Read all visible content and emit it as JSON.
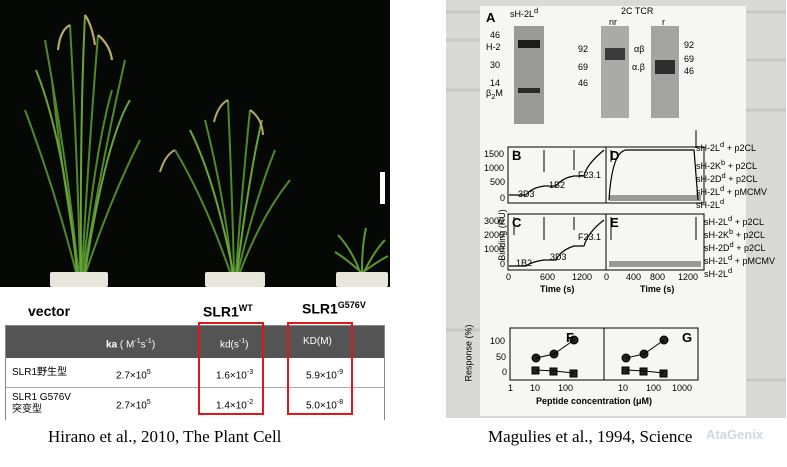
{
  "left": {
    "genotypes": {
      "vector": "vector",
      "wt_base": "SLR1",
      "wt_sup": "WT",
      "mut_base": "SLR1",
      "mut_sup": "G576V"
    },
    "table": {
      "headers": {
        "ka_base": "ka",
        "ka_unit_a": "( M",
        "ka_unit_b": "-1",
        "ka_unit_c": "s",
        "ka_unit_d": "-1",
        "ka_unit_e": ")",
        "kd_base": "kd(s",
        "kd_sup": "-1",
        "kd_end": ")",
        "KD": "KD(M)"
      },
      "rows": [
        {
          "name": "SLR1野生型",
          "name2": "",
          "ka_base": "2.7×10",
          "ka_exp": "5",
          "kd_base": "1.6×10",
          "kd_exp": "-3",
          "KD_base": "5.9×10",
          "KD_exp": "-9"
        },
        {
          "name": "SLR1 G576V",
          "name2": "突变型",
          "ka_base": "2.7×10",
          "ka_exp": "5",
          "kd_base": "1.4×10",
          "kd_exp": "-2",
          "KD_base": "5.0×10",
          "KD_exp": "-8"
        }
      ]
    },
    "citation": "Hirano et al., 2010, The Plant Cell"
  },
  "right": {
    "A": {
      "label": "A",
      "lane_titles": {
        "sh2": "sH-2L",
        "sh2_sup": "d",
        "tcr": "2C TCR",
        "nr": "nr",
        "r": "r"
      },
      "markers_left": [
        "46",
        "30",
        "14"
      ],
      "markers_mid": [
        "92",
        "69",
        "46"
      ],
      "markers_right": [
        "92",
        "69",
        "46"
      ],
      "bands": {
        "h2": "H-2",
        "b2m": "β",
        "b2m_sub": "2",
        "b2m_end": "M",
        "ab": "αβ",
        "a_b": "α.β"
      }
    },
    "binding": {
      "ylabel": "Binding (RU)",
      "xlabel": "Time (s)",
      "B": {
        "label": "B",
        "yticks": [
          "1500",
          "1000",
          "500",
          "0"
        ],
        "steps": [
          "3D3",
          "1B2",
          "F23.1"
        ]
      },
      "C": {
        "label": "C",
        "yticks": [
          "3000",
          "2000",
          "1000",
          "0"
        ],
        "steps": [
          "1B2",
          "3D3",
          "F23.1"
        ],
        "xticks": [
          "0",
          "600",
          "1200"
        ]
      },
      "D": {
        "label": "D"
      },
      "E": {
        "label": "E",
        "xticks": [
          "0",
          "400",
          "800",
          "1200"
        ]
      },
      "legendD": [
        "sH-2L",
        "sH-2K",
        "sH-2D",
        "sH-2L",
        "sH-2L"
      ],
      "legendD_sup": [
        "d",
        "b",
        "d",
        "d",
        "d"
      ],
      "legendD_tail": [
        " + p2CL",
        " + p2CL",
        " + p2CL",
        " + pMCMV",
        ""
      ],
      "legendE": [
        "sH-2L",
        "sH-2K",
        "sH-2D",
        "sH-2L",
        "sH-2L"
      ],
      "legendE_sup": [
        "d",
        "b",
        "d",
        "d",
        "d"
      ],
      "legendE_tail": [
        " + p2CL",
        " + p2CL",
        " + p2CL",
        " + pMCMV",
        ""
      ]
    },
    "response": {
      "ylabel": "Response (%)",
      "xlabel": "Peptide concentration (μM)",
      "yticks": [
        "100",
        "50",
        "0"
      ],
      "F": {
        "label": "F",
        "xticks": [
          "10",
          "100"
        ]
      },
      "G": {
        "label": "G",
        "xticks": [
          "10",
          "100",
          "1000"
        ]
      },
      "x1": "1"
    },
    "citation": "Magulies et al., 1994, Science",
    "watermark": "AtaGenix"
  }
}
